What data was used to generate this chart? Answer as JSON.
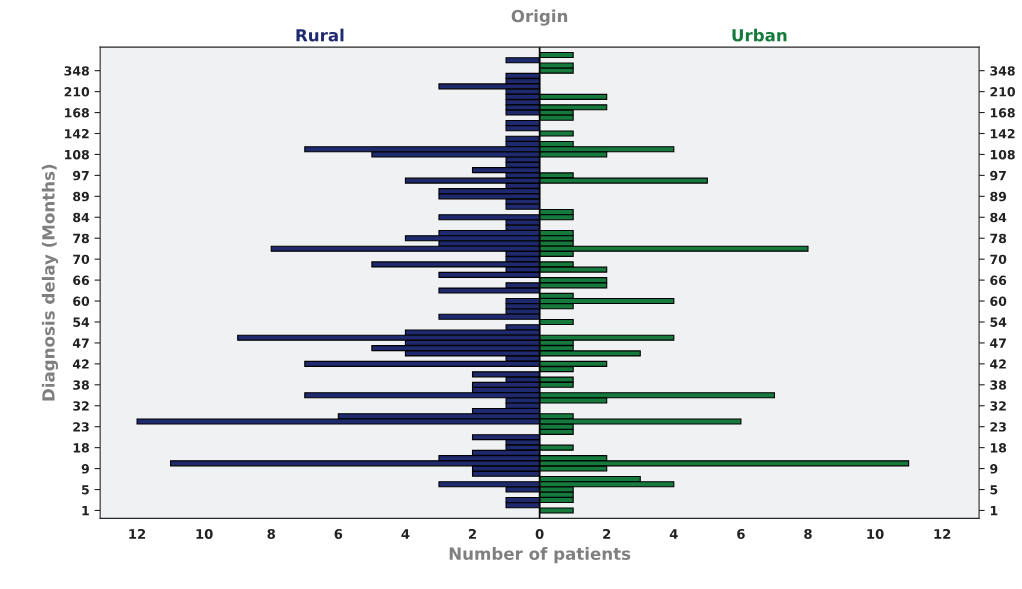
{
  "chart_data": {
    "type": "bar",
    "orientation": "horizontal",
    "title": "Origin",
    "xlabel": "Number of patients",
    "ylabel": "Diagnosis delay (Months)",
    "categories": [
      null,
      null,
      null,
      "348",
      null,
      null,
      null,
      "210",
      null,
      null,
      null,
      "168",
      null,
      null,
      null,
      "142",
      null,
      null,
      null,
      "108",
      null,
      null,
      null,
      "97",
      null,
      null,
      null,
      "89",
      null,
      null,
      null,
      "84",
      null,
      null,
      null,
      "78",
      null,
      null,
      null,
      "70",
      null,
      null,
      null,
      "66",
      null,
      null,
      null,
      "60",
      null,
      null,
      null,
      "54",
      null,
      null,
      null,
      "47",
      null,
      null,
      null,
      "42",
      null,
      null,
      null,
      "38",
      null,
      null,
      null,
      "32",
      null,
      null,
      null,
      "23",
      null,
      null,
      null,
      "18",
      null,
      null,
      null,
      "9",
      null,
      null,
      null,
      "5",
      null,
      null,
      null,
      "1"
    ],
    "series": [
      {
        "name": "Rural",
        "color": "#1f2a6e",
        "values": [
          null,
          -1,
          null,
          null,
          -1,
          -1,
          -3,
          -1,
          -1,
          -1,
          -1,
          -1,
          null,
          -1,
          -1,
          null,
          -1,
          -1,
          -7,
          -5,
          -1,
          -1,
          -2,
          -1,
          -4,
          -1,
          -3,
          -3,
          -1,
          -1,
          null,
          -3,
          -1,
          -1,
          -3,
          -4,
          -3,
          -8,
          -1,
          -1,
          -5,
          -1,
          -3,
          null,
          -1,
          -3,
          null,
          -1,
          -1,
          -1,
          -3,
          null,
          -1,
          -4,
          -9,
          -4,
          -5,
          -4,
          -1,
          -7,
          null,
          -2,
          -1,
          -2,
          -2,
          -7,
          -1,
          -1,
          -2,
          -6,
          -12,
          null,
          null,
          -2,
          -1,
          -1,
          -2,
          -3,
          -11,
          -2,
          -2,
          null,
          -3,
          -1,
          null,
          -1,
          -1,
          null
        ]
      },
      {
        "name": "Urban",
        "color": "#157a3c",
        "values": [
          1,
          null,
          1,
          1,
          null,
          null,
          null,
          null,
          2,
          null,
          2,
          1,
          1,
          null,
          null,
          1,
          null,
          1,
          4,
          2,
          null,
          null,
          null,
          1,
          5,
          null,
          null,
          null,
          null,
          null,
          1,
          1,
          null,
          null,
          1,
          1,
          1,
          8,
          1,
          null,
          1,
          2,
          null,
          2,
          2,
          null,
          1,
          4,
          1,
          null,
          null,
          1,
          null,
          null,
          4,
          1,
          1,
          3,
          null,
          2,
          1,
          null,
          1,
          1,
          null,
          7,
          2,
          null,
          null,
          1,
          6,
          1,
          1,
          null,
          null,
          1,
          null,
          2,
          11,
          2,
          null,
          3,
          4,
          1,
          1,
          1,
          null,
          1
        ]
      }
    ],
    "xlim": [
      -13.1,
      13.1
    ],
    "xticks": [
      {
        "value": -12,
        "label": "12"
      },
      {
        "value": -10,
        "label": "10"
      },
      {
        "value": -8,
        "label": "8"
      },
      {
        "value": -6,
        "label": "6"
      },
      {
        "value": -4,
        "label": "4"
      },
      {
        "value": -2,
        "label": "2"
      },
      0,
      2,
      4,
      6,
      8,
      10,
      12
    ],
    "ref_lines": [
      {
        "axis": "x",
        "value": 0,
        "color": "#000000"
      }
    ],
    "grid": false,
    "legend": false
  }
}
